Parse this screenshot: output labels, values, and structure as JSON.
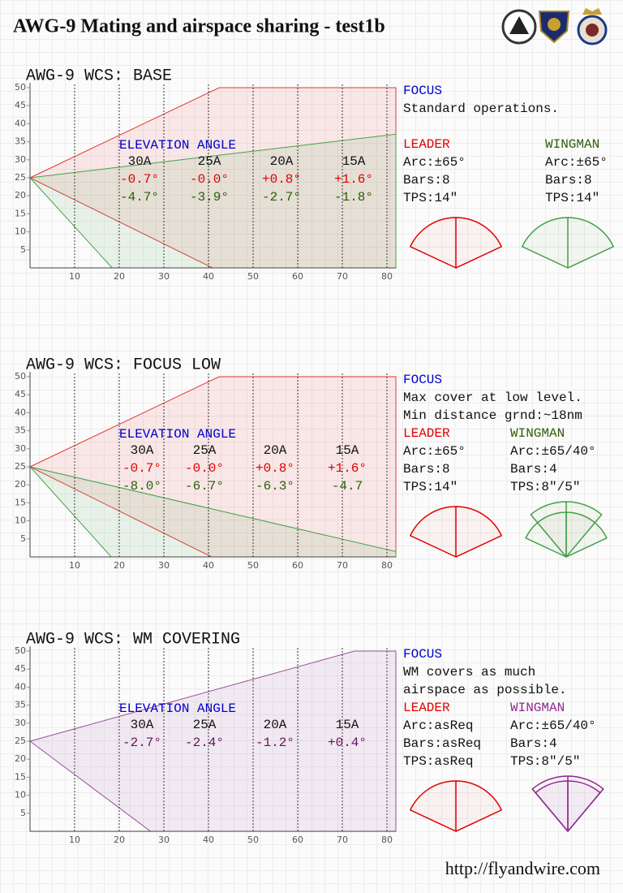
{
  "header": {
    "title": "AWG-9 Mating and airspace sharing - test1b"
  },
  "chart_data": [
    {
      "type": "area",
      "title": "AWG-9 WCS: BASE",
      "xlim": [
        0,
        82
      ],
      "ylim": [
        0,
        50
      ],
      "xticks": [
        10,
        20,
        30,
        40,
        50,
        60,
        70,
        80
      ],
      "yticks": [
        5,
        10,
        15,
        20,
        25,
        30,
        35,
        40,
        45,
        50
      ],
      "grid": true,
      "series": [
        {
          "color": "#e53935",
          "x": [
            0,
            42.4,
            82,
            82,
            40.9
          ],
          "values": [
            25,
            50,
            50,
            0,
            0
          ]
        },
        {
          "color": "#43a047",
          "x": [
            0,
            82,
            82,
            18.4
          ],
          "values": [
            25,
            37.1,
            0,
            0
          ]
        }
      ]
    },
    {
      "type": "area",
      "title": "AWG-9 WCS: FOCUS LOW",
      "xlim": [
        0,
        82
      ],
      "ylim": [
        0,
        50
      ],
      "xticks": [
        10,
        20,
        30,
        40,
        50,
        60,
        70,
        80
      ],
      "yticks": [
        5,
        10,
        15,
        20,
        25,
        30,
        35,
        40,
        45,
        50
      ],
      "grid": true,
      "series": [
        {
          "color": "#e53935",
          "x": [
            0,
            42.4,
            82,
            82,
            40.7
          ],
          "values": [
            25,
            50,
            50,
            0,
            0
          ]
        },
        {
          "color": "#43a047",
          "x": [
            0,
            82,
            82,
            18.2
          ],
          "values": [
            25,
            1.5,
            0,
            0
          ]
        }
      ]
    },
    {
      "type": "area",
      "title": "AWG-9 WCS: WM COVERING",
      "xlim": [
        0,
        82
      ],
      "ylim": [
        0,
        50
      ],
      "xticks": [
        10,
        20,
        30,
        40,
        50,
        60,
        70,
        80
      ],
      "yticks": [
        5,
        10,
        15,
        20,
        25,
        30,
        35,
        40,
        45,
        50
      ],
      "grid": true,
      "series": [
        {
          "color": "#9c4a9c",
          "x": [
            0,
            72.7,
            82,
            82,
            27
          ],
          "values": [
            25,
            50,
            50,
            0,
            0
          ]
        }
      ]
    }
  ],
  "panels": [
    {
      "elevation": {
        "title": "ELEVATION ANGLE",
        "columns": [
          "30A",
          "25A",
          "20A",
          "15A"
        ],
        "rows": [
          {
            "color": "#e00000",
            "cells": [
              "-0.7°",
              "-0.0°",
              "+0.8°",
              "+1.6°"
            ]
          },
          {
            "color": "#2e5e0a",
            "cells": [
              "-4.7°",
              "-3.9°",
              "-2.7°",
              "-1.8°"
            ]
          }
        ]
      },
      "focus": {
        "label": "FOCUS",
        "lines": [
          "Standard operations."
        ]
      },
      "leader": {
        "label": "LEADER",
        "color": "#e00000",
        "lines": [
          "Arc:±65°",
          "Bars:8",
          "TPS:14\""
        ]
      },
      "wingman": {
        "label": "WINGMAN",
        "color": "#2e5e0a",
        "lines": [
          "Arc:±65°",
          "Bars:8",
          "TPS:14\""
        ]
      }
    },
    {
      "elevation": {
        "title": "ELEVATION ANGLE",
        "columns": [
          "30A",
          "25A",
          "20A",
          "15A"
        ],
        "rows": [
          {
            "color": "#e00000",
            "cells": [
              "-0.7°",
              "-0.0°",
              "+0.8°",
              "+1.6°"
            ]
          },
          {
            "color": "#2e5e0a",
            "cells": [
              "-8.0°",
              "-6.7°",
              "-6.3°",
              "-4.7"
            ]
          }
        ]
      },
      "focus": {
        "label": "FOCUS",
        "lines": [
          "Max cover at low level.",
          "Min distance grnd:~18nm"
        ]
      },
      "leader": {
        "label": "LEADER",
        "color": "#e00000",
        "lines": [
          "Arc:±65°",
          "Bars:8",
          "TPS:14\""
        ]
      },
      "wingman": {
        "label": "WINGMAN",
        "color": "#2e5e0a",
        "lines": [
          "Arc:±65/40°",
          "Bars:4",
          "TPS:8\"/5\""
        ]
      }
    },
    {
      "elevation": {
        "title": "ELEVATION ANGLE",
        "columns": [
          "30A",
          "25A",
          "20A",
          "15A"
        ],
        "rows": [
          {
            "color": "#6a1060",
            "cells": [
              "-2.7°",
              "-2.4°",
              "-1.2°",
              "+0.4°"
            ]
          }
        ]
      },
      "focus": {
        "label": "FOCUS",
        "lines": [
          "WM covers as much",
          "airspace as possible."
        ]
      },
      "leader": {
        "label": "LEADER",
        "color": "#e00000",
        "lines": [
          "Arc:asReq",
          "Bars:asReq",
          "TPS:asReq"
        ]
      },
      "wingman": {
        "label": "WINGMAN",
        "color": "#8e2a8e",
        "lines": [
          "Arc:±65/40°",
          "Bars:4",
          "TPS:8\"/5\""
        ]
      }
    }
  ],
  "footer": {
    "url": "http://flyandwire.com"
  }
}
